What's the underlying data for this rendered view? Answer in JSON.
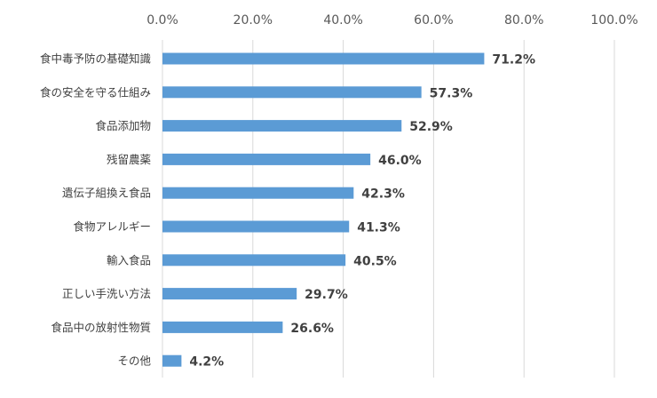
{
  "chart_data": {
    "type": "bar",
    "orientation": "horizontal",
    "categories": [
      "食中毒予防の基礎知識",
      "食の安全を守る仕組み",
      "食品添加物",
      "残留農薬",
      "遺伝子組換え食品",
      "食物アレルギー",
      "輸入食品",
      "正しい手洗い方法",
      "食品中の放射性物質",
      "その他"
    ],
    "values": [
      71.2,
      57.3,
      52.9,
      46.0,
      42.3,
      41.3,
      40.5,
      29.7,
      26.6,
      4.2
    ],
    "value_labels": [
      "71.2%",
      "57.3%",
      "52.9%",
      "46.0%",
      "42.3%",
      "41.3%",
      "40.5%",
      "29.7%",
      "26.6%",
      "4.2%"
    ],
    "xlim": [
      0,
      100
    ],
    "x_ticks": [
      0,
      20,
      40,
      60,
      80,
      100
    ],
    "x_tick_labels": [
      "0.0%",
      "20.0%",
      "40.0%",
      "60.0%",
      "80.0%",
      "100.0%"
    ],
    "x_axis_position": "top",
    "grid": true,
    "legend": "none",
    "bar_color": "#5B9BD5",
    "grid_color": "#d9d9d9",
    "text_color": "#404040"
  }
}
